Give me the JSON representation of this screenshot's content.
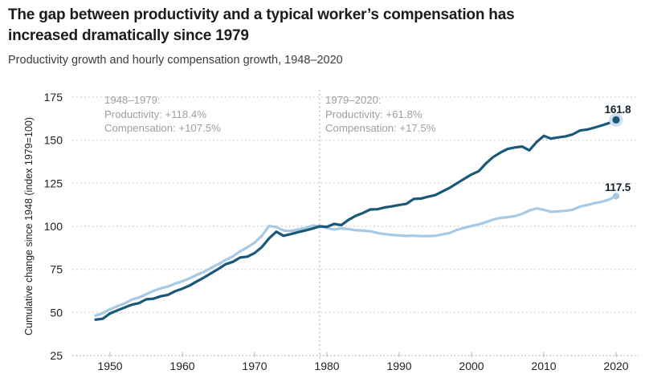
{
  "header": {
    "title": "The gap between productivity and a typical worker’s compensation has increased dramatically since 1979",
    "subtitle": "Productivity growth and hourly compensation growth, 1948–2020"
  },
  "chart_data": {
    "type": "line",
    "title": "The gap between productivity and a typical worker’s compensation has increased dramatically since 1979",
    "subtitle": "Productivity growth and hourly compensation growth, 1948–2020",
    "xlabel": "",
    "ylabel": "Cumulative change since 1948 (index 1979=100)",
    "xlim": [
      1948,
      2020
    ],
    "ylim": [
      25,
      178
    ],
    "x_ticks": [
      1950,
      1960,
      1970,
      1980,
      1990,
      2000,
      2010,
      2020
    ],
    "y_ticks": [
      25,
      50,
      75,
      100,
      125,
      150,
      175
    ],
    "grid": "horizontal-dotted",
    "legend": "none",
    "vline_year": 1979,
    "x": [
      1948,
      1949,
      1950,
      1951,
      1952,
      1953,
      1954,
      1955,
      1956,
      1957,
      1958,
      1959,
      1960,
      1961,
      1962,
      1963,
      1964,
      1965,
      1966,
      1967,
      1968,
      1969,
      1970,
      1971,
      1972,
      1973,
      1974,
      1975,
      1976,
      1977,
      1978,
      1979,
      1980,
      1981,
      1982,
      1983,
      1984,
      1985,
      1986,
      1987,
      1988,
      1989,
      1990,
      1991,
      1992,
      1993,
      1994,
      1995,
      1996,
      1997,
      1998,
      1999,
      2000,
      2001,
      2002,
      2003,
      2004,
      2005,
      2006,
      2007,
      2008,
      2009,
      2010,
      2011,
      2012,
      2013,
      2014,
      2015,
      2016,
      2017,
      2018,
      2019,
      2020
    ],
    "series": [
      {
        "name": "Productivity",
        "color": "#1a587a",
        "halo": "#cddfee",
        "end_label": "161.8",
        "values": [
          45.8,
          46.4,
          49.4,
          51.2,
          52.8,
          54.5,
          55.4,
          57.6,
          58.0,
          59.4,
          60.2,
          62.3,
          63.8,
          65.6,
          68.0,
          70.3,
          72.8,
          75.3,
          78.0,
          79.4,
          81.9,
          82.4,
          84.5,
          88.0,
          93.0,
          96.9,
          94.5,
          95.5,
          96.6,
          97.6,
          98.7,
          100.0,
          99.7,
          101.4,
          100.7,
          103.8,
          106.1,
          107.8,
          109.8,
          109.9,
          111.0,
          111.6,
          112.4,
          113.1,
          115.9,
          116.1,
          117.2,
          118.1,
          120.3,
          122.4,
          125.0,
          127.6,
          130.1,
          132.0,
          136.5,
          140.2,
          142.8,
          144.9,
          145.8,
          146.3,
          144.1,
          148.9,
          152.5,
          150.9,
          151.6,
          152.2,
          153.4,
          155.6,
          156.2,
          157.3,
          158.5,
          159.9,
          161.8
        ]
      },
      {
        "name": "Hourly compensation",
        "color": "#a6c9e6",
        "end_label": "117.5",
        "values": [
          48.2,
          49.6,
          51.9,
          53.6,
          55.3,
          57.4,
          58.7,
          60.6,
          62.5,
          64.0,
          65.0,
          66.8,
          68.1,
          69.8,
          71.8,
          73.6,
          75.9,
          78.1,
          80.5,
          82.6,
          85.5,
          87.8,
          90.5,
          94.5,
          100.2,
          99.6,
          97.6,
          97.3,
          98.2,
          99.0,
          100.4,
          100.0,
          99.0,
          98.2,
          98.8,
          98.4,
          97.7,
          97.5,
          97.1,
          96.2,
          95.5,
          95.0,
          94.7,
          94.4,
          94.6,
          94.3,
          94.3,
          94.5,
          95.3,
          96.2,
          97.9,
          99.1,
          100.2,
          101.1,
          102.4,
          103.9,
          104.9,
          105.3,
          105.9,
          107.2,
          109.2,
          110.4,
          109.6,
          108.4,
          108.7,
          109.0,
          109.6,
          111.4,
          112.4,
          113.4,
          114.2,
          115.5,
          117.5
        ]
      }
    ],
    "annotations": [
      {
        "lines": [
          "1948–1979:",
          "Productivity: +118.4%",
          "Compensation: +107.5%"
        ]
      },
      {
        "lines": [
          "1979–2020:",
          "Productivity: +61.8%",
          "Compensation: +17.5%"
        ]
      }
    ],
    "colors": {
      "grid": "#d2d2d2",
      "axis": "#bdbdbd",
      "vline": "#c4c4c4",
      "tick_text": "#222222",
      "annotation_text": "#9aa0a5"
    }
  }
}
